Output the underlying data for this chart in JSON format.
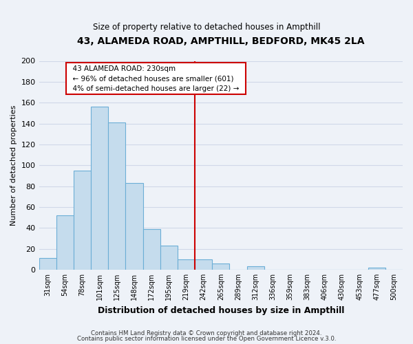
{
  "title": "43, ALAMEDA ROAD, AMPTHILL, BEDFORD, MK45 2LA",
  "subtitle": "Size of property relative to detached houses in Ampthill",
  "xlabel": "Distribution of detached houses by size in Ampthill",
  "ylabel": "Number of detached properties",
  "bar_labels": [
    "31sqm",
    "54sqm",
    "78sqm",
    "101sqm",
    "125sqm",
    "148sqm",
    "172sqm",
    "195sqm",
    "219sqm",
    "242sqm",
    "265sqm",
    "289sqm",
    "312sqm",
    "336sqm",
    "359sqm",
    "383sqm",
    "406sqm",
    "430sqm",
    "453sqm",
    "477sqm",
    "500sqm"
  ],
  "bar_heights": [
    11,
    52,
    95,
    156,
    141,
    83,
    39,
    23,
    10,
    10,
    6,
    0,
    3,
    0,
    0,
    0,
    0,
    0,
    0,
    2,
    0
  ],
  "bar_color": "#c5dced",
  "bar_edge_color": "#6baed6",
  "annotation_title": "43 ALAMEDA ROAD: 230sqm",
  "annotation_line1": "← 96% of detached houses are smaller (601)",
  "annotation_line2": "4% of semi-detached houses are larger (22) →",
  "annotation_box_color": "#ffffff",
  "annotation_box_edge": "#cc0000",
  "property_line_color": "#cc0000",
  "ylim": [
    0,
    200
  ],
  "yticks": [
    0,
    20,
    40,
    60,
    80,
    100,
    120,
    140,
    160,
    180,
    200
  ],
  "footer1": "Contains HM Land Registry data © Crown copyright and database right 2024.",
  "footer2": "Contains public sector information licensed under the Open Government Licence v.3.0.",
  "background_color": "#eef2f8",
  "grid_color": "#d0d8e8",
  "title_fontsize": 10,
  "subtitle_fontsize": 8.5
}
